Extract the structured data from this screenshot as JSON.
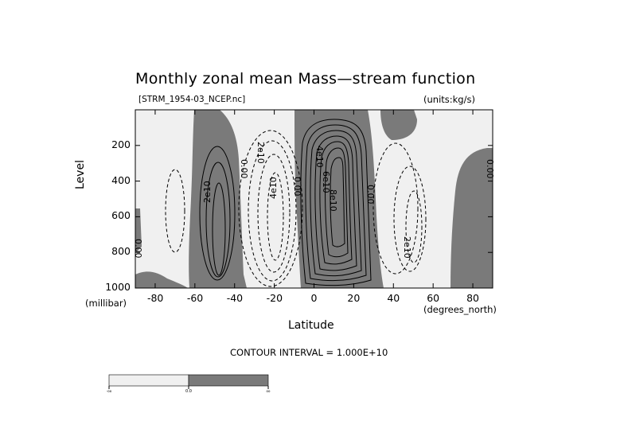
{
  "chart_data": {
    "type": "contour",
    "title": "Monthly zonal mean Mass—stream function",
    "subtitle_left": "[STRM_1954-03_NCEP.nc]",
    "subtitle_right": "(units:kg/s)",
    "xlabel": "Latitude",
    "ylabel": "Level",
    "x_units": "(degrees_north)",
    "y_units": "(millibar)",
    "xlim": [
      -90,
      90
    ],
    "ylim": [
      1000,
      0
    ],
    "x_ticks": [
      -80,
      -60,
      -40,
      -20,
      0,
      20,
      40,
      60,
      80
    ],
    "x_tick_labels": [
      "-80",
      "-60",
      "-40",
      "-20",
      "0",
      "20",
      "40",
      "60",
      "80"
    ],
    "y_ticks": [
      200,
      400,
      600,
      800,
      1000
    ],
    "y_tick_labels": [
      "200",
      "400",
      "600",
      "800",
      "1000"
    ],
    "contour_interval_text": "CONTOUR INTERVAL = 1.000E+10",
    "contour_labels": [
      "0.00",
      "2e10",
      "4e10",
      "0.00",
      "2e10",
      "4e10",
      "6e10",
      "8e10",
      "0.00",
      "2e10",
      "0.00",
      "0.00"
    ],
    "shading": {
      "negative": "#f0f0f0",
      "positive": "#7a7a7a"
    },
    "colorbar": {
      "labels": [
        "-oo",
        "0.0",
        "oo"
      ]
    }
  }
}
